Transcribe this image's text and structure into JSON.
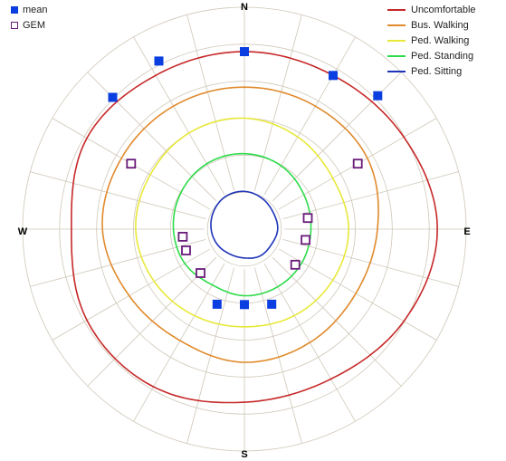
{
  "chart_data": {
    "type": "polar-contour",
    "directions": [
      "N",
      "E",
      "S",
      "W"
    ],
    "grid": true,
    "ring_count": 6,
    "spoke_step_deg": 15,
    "legend_left": [
      {
        "name": "mean",
        "marker": "filled-square",
        "color": "#0a3ee0"
      },
      {
        "name": "GEM",
        "marker": "open-square",
        "color": "#6a1b7a"
      }
    ],
    "legend_right": [
      {
        "name": "Uncomfortable",
        "color": "#c62828"
      },
      {
        "name": "Bus. Walking",
        "color": "#e08a2c"
      },
      {
        "name": "Ped. Walking",
        "color": "#e8e83a"
      },
      {
        "name": "Ped. Standing",
        "color": "#2edb4a"
      },
      {
        "name": "Ped. Sitting",
        "color": "#1e34b8"
      }
    ],
    "contours": [
      {
        "name": "Uncomfortable",
        "radii": [
          0.8,
          0.8,
          0.83,
          0.87,
          0.83,
          0.78,
          0.78,
          0.82,
          0.82,
          0.78,
          0.82,
          0.8
        ]
      },
      {
        "name": "Bus. Walking",
        "radii": [
          0.64,
          0.64,
          0.64,
          0.6,
          0.58,
          0.59,
          0.6,
          0.58,
          0.6,
          0.64,
          0.64,
          0.64
        ]
      },
      {
        "name": "Ped. Walking",
        "radii": [
          0.5,
          0.48,
          0.46,
          0.47,
          0.46,
          0.45,
          0.44,
          0.45,
          0.47,
          0.49,
          0.49,
          0.5
        ]
      },
      {
        "name": "Ped. Standing",
        "radii": [
          0.34,
          0.33,
          0.31,
          0.3,
          0.3,
          0.3,
          0.3,
          0.29,
          0.31,
          0.32,
          0.33,
          0.34
        ]
      },
      {
        "name": "Ped. Sitting",
        "radii": [
          0.17,
          0.16,
          0.15,
          0.15,
          0.14,
          0.14,
          0.13,
          0.13,
          0.14,
          0.15,
          0.16,
          0.17
        ]
      }
    ],
    "mean_points": [
      {
        "angle_deg": 0,
        "r": 0.8
      },
      {
        "angle_deg": 30,
        "r": 0.8
      },
      {
        "angle_deg": 45,
        "r": 0.85
      },
      {
        "angle_deg": -27,
        "r": 0.85
      },
      {
        "angle_deg": -45,
        "r": 0.84
      },
      {
        "angle_deg": 180,
        "r": 0.34
      },
      {
        "angle_deg": 160,
        "r": 0.36
      },
      {
        "angle_deg": 200,
        "r": 0.36
      }
    ],
    "gem_points": [
      {
        "angle_deg": 60,
        "r": 0.59
      },
      {
        "angle_deg": -60,
        "r": 0.59
      },
      {
        "angle_deg": 80,
        "r": 0.29
      },
      {
        "angle_deg": 100,
        "r": 0.28
      },
      {
        "angle_deg": 125,
        "r": 0.28
      },
      {
        "angle_deg": -97,
        "r": 0.28
      },
      {
        "angle_deg": -110,
        "r": 0.28
      },
      {
        "angle_deg": -135,
        "r": 0.28
      }
    ]
  }
}
